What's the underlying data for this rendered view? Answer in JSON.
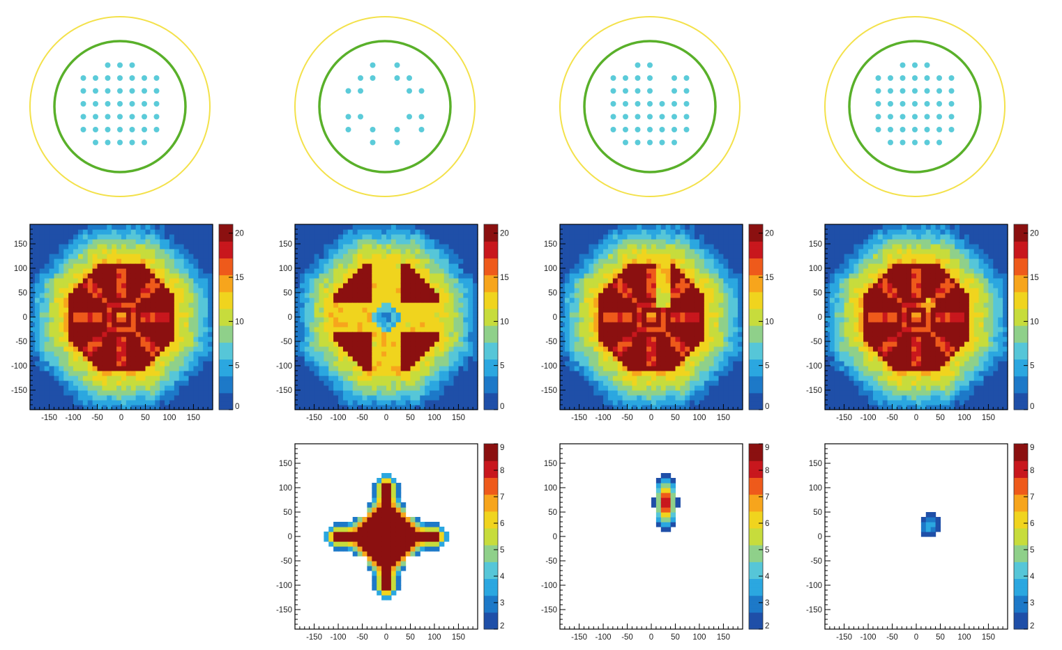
{
  "figure": {
    "layout_columns": 4,
    "scale_colors": [
      "#1f4fa8",
      "#1d79c8",
      "#2ba7e0",
      "#56c6d8",
      "#8fd08a",
      "#c7dc3c",
      "#f0d41e",
      "#f7a51c",
      "#ee5a1b",
      "#c8171d",
      "#8b1010"
    ]
  },
  "chart_data": [
    {
      "type": "diagram",
      "panel": "detector-layout",
      "column": 1,
      "ring_colors": [
        "#f3e14a",
        "#59b02a"
      ],
      "dot_color": "#5bcbd9",
      "dot_rows": [
        [
          -1,
          0,
          1
        ],
        [
          -3,
          -2,
          -1,
          0,
          1,
          2,
          3
        ],
        [
          -3,
          -2,
          -1,
          0,
          1,
          2,
          3
        ],
        [
          -3,
          -2,
          -1,
          0,
          1,
          2,
          3
        ],
        [
          -3,
          -2,
          -1,
          0,
          1,
          2,
          3
        ],
        [
          -3,
          -2,
          -1,
          0,
          1,
          2,
          3
        ],
        [
          -2,
          -1,
          0,
          1,
          2
        ]
      ]
    },
    {
      "type": "diagram",
      "panel": "detector-layout",
      "column": 2,
      "ring_colors": [
        "#f3e14a",
        "#59b02a"
      ],
      "dot_color": "#5bcbd9",
      "dot_rows": [
        [
          -1,
          1
        ],
        [
          -2,
          -1,
          1,
          2
        ],
        [
          -3,
          -2,
          2,
          3
        ],
        [],
        [
          -3,
          -2,
          2,
          3
        ],
        [
          -3,
          -1,
          1,
          3
        ],
        [
          -1,
          1
        ]
      ]
    },
    {
      "type": "diagram",
      "panel": "detector-layout",
      "column": 3,
      "ring_colors": [
        "#f3e14a",
        "#59b02a"
      ],
      "dot_color": "#5bcbd9",
      "dot_rows": [
        [
          -1,
          0
        ],
        [
          -3,
          -2,
          -1,
          0,
          2,
          3
        ],
        [
          -3,
          -2,
          -1,
          0,
          2,
          3
        ],
        [
          -3,
          -2,
          -1,
          0,
          1,
          2,
          3
        ],
        [
          -3,
          -2,
          -1,
          0,
          1,
          2,
          3
        ],
        [
          -3,
          -2,
          -1,
          0,
          1,
          2,
          3
        ],
        [
          -2,
          -1,
          0,
          1,
          2
        ]
      ]
    },
    {
      "type": "diagram",
      "panel": "detector-layout",
      "column": 4,
      "ring_colors": [
        "#f3e14a",
        "#59b02a"
      ],
      "dot_color": "#5bcbd9",
      "dot_rows": [
        [
          -1,
          0,
          1
        ],
        [
          -3,
          -2,
          -1,
          0,
          1,
          2,
          3
        ],
        [
          -3,
          -2,
          -1,
          0,
          1,
          2,
          3
        ],
        [
          -3,
          -2,
          -1,
          0,
          1,
          2,
          3
        ],
        [
          -3,
          -2,
          -1,
          0,
          1,
          2,
          3
        ],
        [
          -3,
          -2,
          -1,
          0,
          1,
          2,
          3
        ],
        [
          -2,
          -1,
          0,
          1,
          2
        ]
      ]
    },
    {
      "type": "heatmap",
      "panel": "occupancy-map",
      "column": 1,
      "pattern": "full",
      "xlim": [
        -190,
        190
      ],
      "ylim": [
        -190,
        190
      ],
      "xticks": [
        -150,
        -100,
        -50,
        0,
        50,
        100,
        150
      ],
      "xtick_labels": [
        "-150",
        "-100",
        "-50",
        "0",
        "50",
        "100",
        "150"
      ],
      "yticks": [
        150,
        100,
        50,
        0,
        -50,
        -100,
        -150
      ],
      "ytick_labels": [
        "150",
        "100",
        "50",
        "0",
        "-50",
        "-100",
        "-150"
      ],
      "zlim": [
        0,
        21
      ],
      "colorbar_ticks": [
        0,
        5,
        10,
        15,
        20
      ],
      "colorbar_labels": [
        "0",
        "5",
        "10",
        "15",
        "20"
      ]
    },
    {
      "type": "heatmap",
      "panel": "occupancy-map",
      "column": 2,
      "pattern": "cross-gap",
      "xlim": [
        -190,
        190
      ],
      "ylim": [
        -190,
        190
      ],
      "xticks": [
        -150,
        -100,
        -50,
        0,
        50,
        100,
        150
      ],
      "xtick_labels": [
        "-150",
        "-100",
        "-50",
        "0",
        "50",
        "100",
        "150"
      ],
      "yticks": [
        150,
        100,
        50,
        0,
        -50,
        -100,
        -150
      ],
      "ytick_labels": [
        "150",
        "100",
        "50",
        "0",
        "-50",
        "-100",
        "-150"
      ],
      "zlim": [
        0,
        21
      ],
      "colorbar_ticks": [
        0,
        5,
        10,
        15,
        20
      ],
      "colorbar_labels": [
        "0",
        "5",
        "10",
        "15",
        "20"
      ]
    },
    {
      "type": "heatmap",
      "panel": "occupancy-map",
      "column": 3,
      "pattern": "single-gap",
      "xlim": [
        -190,
        190
      ],
      "ylim": [
        -190,
        190
      ],
      "xticks": [
        -150,
        -100,
        -50,
        0,
        50,
        100,
        150
      ],
      "xtick_labels": [
        "-150",
        "-100",
        "-50",
        "0",
        "50",
        "100",
        "150"
      ],
      "yticks": [
        150,
        100,
        50,
        0,
        -50,
        -100,
        -150
      ],
      "ytick_labels": [
        "150",
        "100",
        "50",
        "0",
        "-50",
        "-100",
        "-150"
      ],
      "zlim": [
        0,
        21
      ],
      "colorbar_ticks": [
        0,
        5,
        10,
        15,
        20
      ],
      "colorbar_labels": [
        "0",
        "5",
        "10",
        "15",
        "20"
      ]
    },
    {
      "type": "heatmap",
      "panel": "occupancy-map",
      "column": 4,
      "pattern": "full-hotspot",
      "xlim": [
        -190,
        190
      ],
      "ylim": [
        -190,
        190
      ],
      "xticks": [
        -150,
        -100,
        -50,
        0,
        50,
        100,
        150
      ],
      "xtick_labels": [
        "-150",
        "-100",
        "-50",
        "0",
        "50",
        "100",
        "150"
      ],
      "yticks": [
        150,
        100,
        50,
        0,
        -50,
        -100,
        -150
      ],
      "ytick_labels": [
        "150",
        "100",
        "50",
        "0",
        "-50",
        "-100",
        "-150"
      ],
      "zlim": [
        0,
        21
      ],
      "colorbar_ticks": [
        0,
        5,
        10,
        15,
        20
      ],
      "colorbar_labels": [
        "0",
        "5",
        "10",
        "15",
        "20"
      ]
    },
    {
      "type": "heatmap",
      "panel": "difference-map",
      "column": 2,
      "pattern": "cross",
      "xlim": [
        -190,
        190
      ],
      "ylim": [
        -190,
        190
      ],
      "xticks": [
        -150,
        -100,
        -50,
        0,
        50,
        100,
        150
      ],
      "xtick_labels": [
        "-150",
        "-100",
        "-50",
        "0",
        "50",
        "100",
        "150"
      ],
      "yticks": [
        150,
        100,
        50,
        0,
        -50,
        -100,
        -150
      ],
      "ytick_labels": [
        "150",
        "100",
        "50",
        "0",
        "-50",
        "-100",
        "-150"
      ],
      "zlim": [
        2,
        9
      ],
      "colorbar_ticks": [
        2,
        3,
        4,
        5,
        6,
        7,
        8,
        9
      ],
      "colorbar_labels": [
        "2",
        "3",
        "4",
        "5",
        "6",
        "7",
        "8",
        "9"
      ]
    },
    {
      "type": "heatmap",
      "panel": "difference-map",
      "column": 3,
      "pattern": "blob",
      "xlim": [
        -190,
        190
      ],
      "ylim": [
        -190,
        190
      ],
      "xticks": [
        -150,
        -100,
        -50,
        0,
        50,
        100,
        150
      ],
      "xtick_labels": [
        "-150",
        "-100",
        "-50",
        "0",
        "50",
        "100",
        "150"
      ],
      "yticks": [
        150,
        100,
        50,
        0,
        -50,
        -100,
        -150
      ],
      "ytick_labels": [
        "150",
        "100",
        "50",
        "0",
        "-50",
        "-100",
        "-150"
      ],
      "zlim": [
        2,
        9
      ],
      "colorbar_ticks": [
        2,
        3,
        4,
        5,
        6,
        7,
        8,
        9
      ],
      "colorbar_labels": [
        "2",
        "3",
        "4",
        "5",
        "6",
        "7",
        "8",
        "9"
      ]
    },
    {
      "type": "heatmap",
      "panel": "difference-map",
      "column": 4,
      "pattern": "small",
      "xlim": [
        -190,
        190
      ],
      "ylim": [
        -190,
        190
      ],
      "xticks": [
        -150,
        -100,
        -50,
        0,
        50,
        100,
        150
      ],
      "xtick_labels": [
        "-150",
        "-100",
        "-50",
        "0",
        "50",
        "100",
        "150"
      ],
      "yticks": [
        150,
        100,
        50,
        0,
        -50,
        -100,
        -150
      ],
      "ytick_labels": [
        "150",
        "100",
        "50",
        "0",
        "-50",
        "-100",
        "-150"
      ],
      "zlim": [
        2,
        9
      ],
      "colorbar_ticks": [
        2,
        3,
        4,
        5,
        6,
        7,
        8,
        9
      ],
      "colorbar_labels": [
        "2",
        "3",
        "4",
        "5",
        "6",
        "7",
        "8",
        "9"
      ]
    }
  ]
}
